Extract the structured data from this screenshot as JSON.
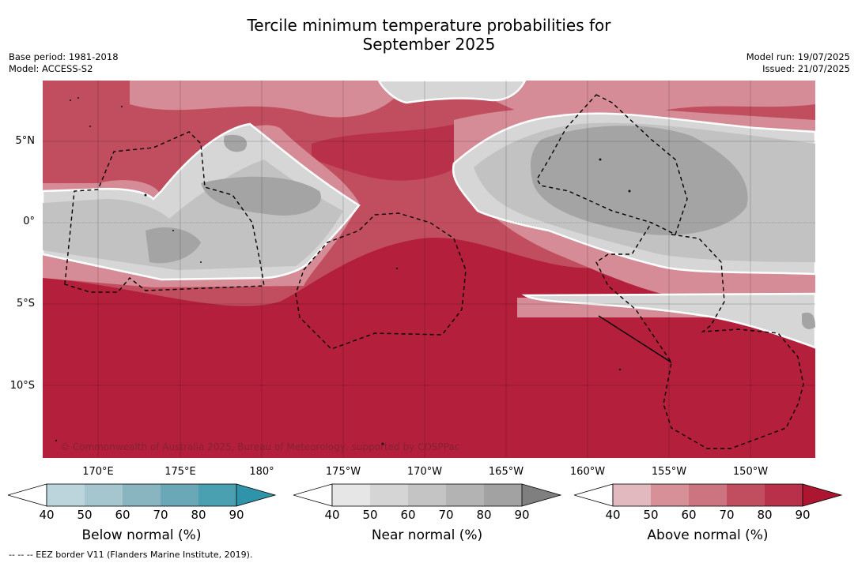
{
  "title_line1": "Tercile minimum temperature probabilities for",
  "title_line2": "September 2025",
  "meta_left": {
    "base_period": "Base period: 1981-2018",
    "model": "Model: ACCESS-S2"
  },
  "meta_right": {
    "model_run": "Model run: 19/07/2025",
    "issued": "Issued: 21/07/2025"
  },
  "lat_labels": [
    "5°N",
    "0°",
    "5°S",
    "10°S"
  ],
  "lon_labels": [
    "170°E",
    "175°E",
    "180°",
    "175°W",
    "170°W",
    "165°W",
    "160°W",
    "155°W",
    "150°W"
  ],
  "credit": "© Commonwealth of Australia 2025, Bureau of Meteorology, supported by COSPPac",
  "colorbars": [
    {
      "title": "Below normal (%)",
      "ticks": [
        "40",
        "50",
        "60",
        "70",
        "80",
        "90"
      ],
      "colors": [
        "#bcd4dc",
        "#a5c6ce",
        "#88b5c0",
        "#6aa8b7",
        "#4a9fb0",
        "#2f93aa"
      ]
    },
    {
      "title": "Near normal (%)",
      "ticks": [
        "40",
        "50",
        "60",
        "70",
        "80",
        "90"
      ],
      "colors": [
        "#e6e6e6",
        "#d5d5d5",
        "#c4c4c4",
        "#b3b3b3",
        "#a2a2a2",
        "#7f7f7f"
      ]
    },
    {
      "title": "Above normal (%)",
      "ticks": [
        "40",
        "50",
        "60",
        "70",
        "80",
        "90"
      ],
      "colors": [
        "#e3b9c0",
        "#d79098",
        "#cc7480",
        "#c14e5e",
        "#b9304a",
        "#ac1630"
      ]
    }
  ],
  "footnote": "--  --  -- EEZ border V11 (Flanders Marine Institute, 2019).",
  "colors": {
    "above_max": "#b41f3c",
    "above_mid": "#c8485a",
    "above_low": "#d68c96",
    "near_low": "#d6d6d6",
    "near_mid": "#c2c2c2",
    "near_high": "#a4a4a4"
  }
}
